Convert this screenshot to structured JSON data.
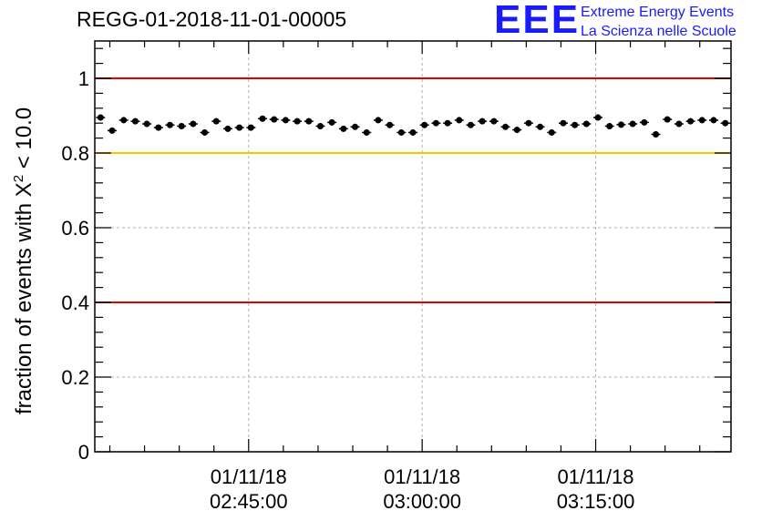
{
  "page": {
    "run_title": "REGG-01-2018-11-01-00005",
    "logo": {
      "mark": "EEE",
      "line1": "Extreme Energy Events",
      "line2": "La Scienza nelle Scuole",
      "color": "#1a1aff"
    }
  },
  "chart_data": {
    "type": "scatter",
    "title": "REGG-01-2018-11-01-00005",
    "ylabel_prefix": "fraction of events with X",
    "ylabel_sup": "2",
    "ylabel_suffix": " < 10.0",
    "xlabel": "",
    "x_unit": "minutes after 01/11/18 02:30:00",
    "xlim": [
      0,
      55
    ],
    "ylim": [
      0,
      1.1
    ],
    "yticks": [
      {
        "value": 0,
        "label": "0"
      },
      {
        "value": 0.2,
        "label": "0.2"
      },
      {
        "value": 0.4,
        "label": "0.4"
      },
      {
        "value": 0.6,
        "label": "0.6"
      },
      {
        "value": 0.8,
        "label": "0.8"
      },
      {
        "value": 1,
        "label": "1"
      }
    ],
    "xticks": [
      {
        "value": 13.3,
        "date": "01/11/18",
        "time": "02:45:00"
      },
      {
        "value": 28.3,
        "date": "01/11/18",
        "time": "03:00:00"
      },
      {
        "value": 43.3,
        "date": "01/11/18",
        "time": "03:15:00"
      }
    ],
    "grid": true,
    "reference_lines": [
      {
        "value": 1.0,
        "color": "#e00000"
      },
      {
        "value": 0.8,
        "color": "#ffc000"
      },
      {
        "value": 0.4,
        "color": "#e00000"
      }
    ],
    "series": [
      {
        "name": "fraction",
        "color": "#000000",
        "x": [
          0.5,
          1.5,
          2.5,
          3.5,
          4.5,
          5.5,
          6.5,
          7.5,
          8.5,
          9.5,
          10.5,
          11.5,
          12.5,
          13.5,
          14.5,
          15.5,
          16.5,
          17.5,
          18.5,
          19.5,
          20.5,
          21.5,
          22.5,
          23.5,
          24.5,
          25.5,
          26.5,
          27.5,
          28.5,
          29.5,
          30.5,
          31.5,
          32.5,
          33.5,
          34.5,
          35.5,
          36.5,
          37.5,
          38.5,
          39.5,
          40.5,
          41.5,
          42.5,
          43.5,
          44.5,
          45.5,
          46.5,
          47.5,
          48.5,
          49.5,
          50.5,
          51.5,
          52.5,
          53.5,
          54.5
        ],
        "y": [
          0.895,
          0.86,
          0.888,
          0.885,
          0.878,
          0.868,
          0.875,
          0.872,
          0.878,
          0.855,
          0.885,
          0.865,
          0.868,
          0.868,
          0.892,
          0.89,
          0.888,
          0.885,
          0.885,
          0.872,
          0.882,
          0.865,
          0.87,
          0.855,
          0.888,
          0.875,
          0.855,
          0.855,
          0.875,
          0.88,
          0.88,
          0.888,
          0.875,
          0.885,
          0.885,
          0.87,
          0.862,
          0.88,
          0.87,
          0.855,
          0.88,
          0.875,
          0.878,
          0.895,
          0.872,
          0.876,
          0.878,
          0.882,
          0.85,
          0.89,
          0.878,
          0.885,
          0.888,
          0.888,
          0.88
        ],
        "error": 0.008
      }
    ]
  }
}
